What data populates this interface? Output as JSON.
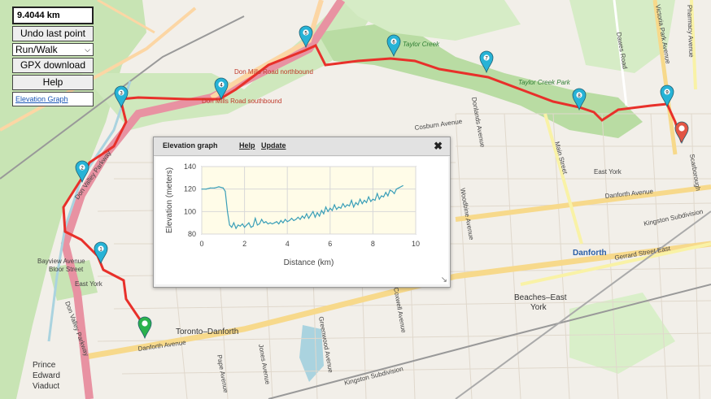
{
  "route": {
    "distance": "9.4044 km"
  },
  "controls": {
    "undo_label": "Undo last point",
    "mode_value": "Run/Walk",
    "gpx_label": "GPX download",
    "help_label": "Help",
    "elevation_link": "Elevation Graph"
  },
  "markers": [
    {
      "label": "1"
    },
    {
      "label": "2"
    },
    {
      "label": "3"
    },
    {
      "label": "4"
    },
    {
      "label": "5"
    },
    {
      "label": "6"
    },
    {
      "label": "7"
    },
    {
      "label": "8"
    },
    {
      "label": "9"
    }
  ],
  "colors": {
    "route": "#e8302a",
    "marker": "#27b3d6",
    "start": "#2bb24c",
    "end": "#e25544",
    "elevation_line": "#3a9fb8"
  },
  "map_labels": {
    "don_mills_nb": "Don Mills Road northbound",
    "don_mills_sb": "Don Mills Road southbound",
    "taylor_creek": "Taylor Creek",
    "taylor_creek_park": "Taylor Creek Park",
    "danforth_ave": "Danforth Avenue",
    "danforth_ave_2": "Danforth Avenue",
    "danforth": "Danforth",
    "toronto_danforth": "Toronto–Danforth",
    "east_york": "East York",
    "east_york_2": "East York",
    "beaches": "Beaches–East",
    "york": "York",
    "bayview": "Bayview Avenue",
    "bloor": "Bloor Street",
    "don_valley_pkwy": "Don Valley Parkway",
    "don_valley_pkwy_2": "Don Valley Parkway",
    "prince": "Prince",
    "edward": "Edward",
    "viaduct": "Viaduct",
    "main_street": "Main Street",
    "dawes_road": "Dawes Road",
    "victoria_park": "Victoria Park Avenue",
    "pharmacy": "Pharmacy Avenue",
    "gerrard": "Gerrard Street East",
    "kingston_sub": "Kingston Subdivision",
    "kingston_sub_2": "Kingston Subdivision",
    "woodbine": "Woodbine Avenue",
    "coxwell": "Coxwell Avenue",
    "greenwood": "Greenwood Avenue",
    "jones": "Jones Avenue",
    "pape": "Pape Avenue",
    "donlands": "Donlands Avenue",
    "cosburn": "Cosburn Avenue",
    "scarborough": "Scarborough"
  },
  "elevation_panel": {
    "title": "Elevation graph",
    "help": "Help",
    "update": "Update",
    "close": "✖"
  },
  "chart_data": {
    "type": "line",
    "xlabel": "Distance (km)",
    "ylabel": "Elevation (meters)",
    "xlim": [
      0,
      10
    ],
    "ylim": [
      80,
      140
    ],
    "xticks": [
      0,
      2,
      4,
      6,
      8,
      10
    ],
    "yticks": [
      80,
      100,
      120,
      140
    ],
    "grid": true,
    "series": [
      {
        "x": [
          0.0,
          0.2,
          0.4,
          0.6,
          0.8,
          1.0,
          1.1,
          1.2,
          1.3,
          1.4,
          1.5,
          1.6,
          1.7,
          1.8,
          1.9,
          2.0,
          2.1,
          2.2,
          2.3,
          2.4,
          2.5,
          2.6,
          2.7,
          2.8,
          2.9,
          3.0,
          3.1,
          3.2,
          3.3,
          3.4,
          3.5,
          3.6,
          3.7,
          3.8,
          3.9,
          4.0,
          4.1,
          4.2,
          4.3,
          4.4,
          4.5,
          4.6,
          4.7,
          4.8,
          4.9,
          5.0,
          5.1,
          5.2,
          5.3,
          5.4,
          5.5,
          5.6,
          5.7,
          5.8,
          5.9,
          6.0,
          6.1,
          6.2,
          6.3,
          6.4,
          6.5,
          6.6,
          6.7,
          6.8,
          6.9,
          7.0,
          7.1,
          7.2,
          7.3,
          7.4,
          7.5,
          7.6,
          7.7,
          7.8,
          7.9,
          8.0,
          8.1,
          8.2,
          8.3,
          8.4,
          8.5,
          8.6,
          8.7,
          8.8,
          8.9,
          9.0,
          9.1,
          9.2,
          9.4
        ],
        "y": [
          120,
          120,
          121,
          121,
          122,
          121,
          118,
          100,
          88,
          86,
          90,
          85,
          88,
          87,
          89,
          86,
          88,
          90,
          86,
          87,
          94,
          88,
          89,
          93,
          90,
          91,
          89,
          90,
          89,
          90,
          91,
          89,
          92,
          90,
          93,
          91,
          92,
          94,
          92,
          93,
          95,
          93,
          96,
          94,
          98,
          94,
          97,
          100,
          95,
          99,
          96,
          101,
          98,
          104,
          100,
          103,
          101,
          106,
          102,
          104,
          103,
          107,
          104,
          106,
          105,
          110,
          104,
          108,
          106,
          111,
          107,
          110,
          108,
          113,
          109,
          111,
          110,
          116,
          111,
          114,
          113,
          117,
          114,
          119,
          118,
          116,
          120,
          121,
          123
        ]
      }
    ]
  }
}
